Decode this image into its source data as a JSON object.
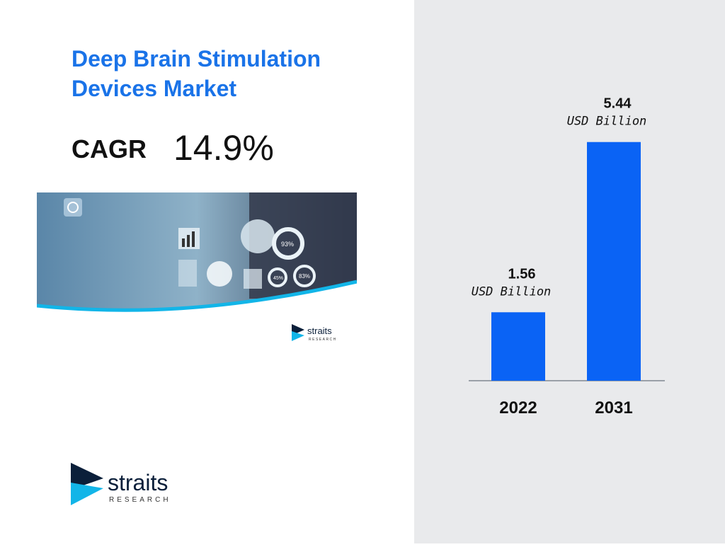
{
  "title": "Deep Brain Stimulation Devices Market",
  "cagr": {
    "label": "CAGR",
    "value": "14.9%"
  },
  "hero_image": {
    "icon_names": [
      "clock-icon",
      "bar-chart-icon",
      "globe-icon",
      "donut-chart-icon",
      "pie-chart-icon",
      "candlestick-icon"
    ],
    "gauge_values": [
      "93%",
      "45%",
      "83%"
    ]
  },
  "brand": {
    "name": "straits",
    "sub": "RESEARCH",
    "colors": {
      "dark": "#0b1f3a",
      "accent": "#12b5e8"
    }
  },
  "chart_data": {
    "type": "bar",
    "categories": [
      "2022",
      "2031"
    ],
    "values": [
      1.56,
      5.44
    ],
    "unit": "USD Billion",
    "value_labels": [
      "1.56",
      "5.44"
    ],
    "ylim": [
      0,
      6
    ],
    "grid": false,
    "bar_color": "#0a63f5"
  }
}
